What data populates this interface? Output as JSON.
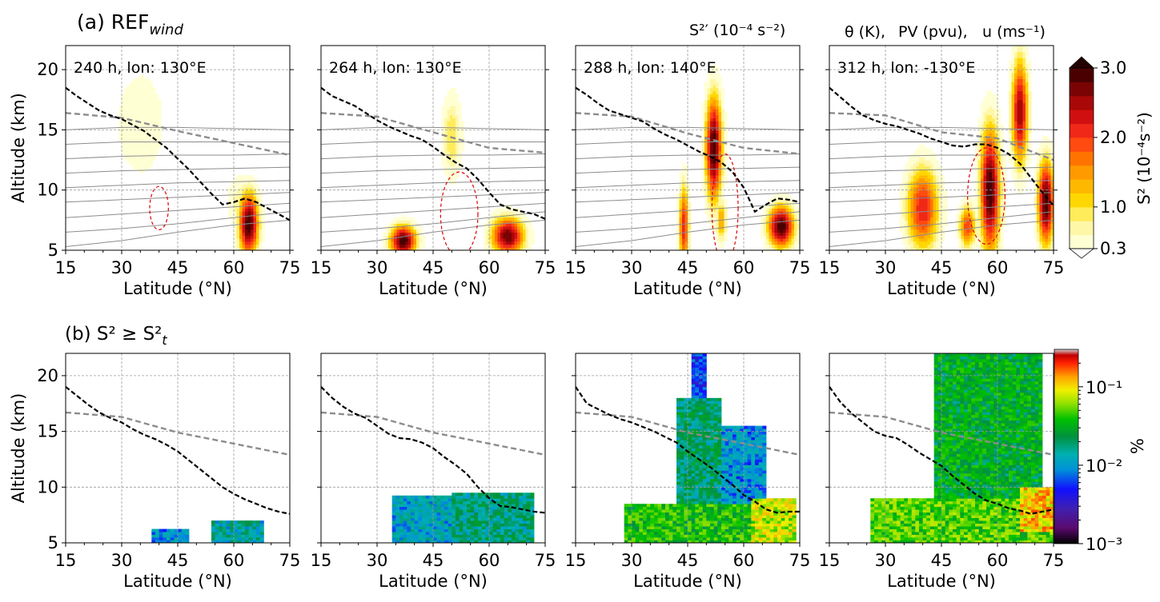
{
  "figure": {
    "row_a_title": "(a) REF",
    "row_a_title_sub": "wind",
    "row_b_title": "(b) S² ≥ S²",
    "row_b_title_sub": "t",
    "legend": [
      {
        "text": "S²′ (10⁻⁴ s⁻²)",
        "color": "#1b7f86"
      },
      {
        "text": "θ (K),",
        "color": "#8c8c8c"
      },
      {
        "text": "PV (pvu),",
        "color": "#000000"
      },
      {
        "text": "u (ms⁻¹)",
        "color": "#e00000"
      }
    ]
  },
  "chart_data": [
    {
      "type": "heatmap",
      "row": "a",
      "panels": [
        {
          "label": "240 h, lon: 130°E"
        },
        {
          "label": "264 h, lon: 130°E"
        },
        {
          "label": "288 h, lon: 140°E"
        },
        {
          "label": "312 h, lon: -130°E"
        }
      ],
      "xlabel": "Latitude (°N)",
      "ylabel": "Altitude (km)",
      "xlim": [
        15,
        75
      ],
      "ylim": [
        5,
        22
      ],
      "xticks": [
        15,
        30,
        45,
        60,
        75
      ],
      "yticks": [
        5,
        10,
        15,
        20
      ],
      "grid": true,
      "colorbar": {
        "label": "S² (10⁻⁴s⁻²)",
        "ticks": [
          "0.3",
          "1.0",
          "2.0",
          "3.0"
        ],
        "extend": "both",
        "levels": [
          0.3,
          0.6,
          0.8,
          1.0,
          1.2,
          1.4,
          1.6,
          1.8,
          2.0,
          2.2,
          2.4,
          2.6,
          2.8,
          3.0
        ],
        "colors": [
          "#ffffd4",
          "#fff7a8",
          "#ffec5a",
          "#ffd700",
          "#ffb800",
          "#ff9a00",
          "#ff7400",
          "#ff4a10",
          "#f02818",
          "#d01010",
          "#a80808",
          "#7a0303",
          "#4a0000",
          "#250000"
        ]
      },
      "pv_tropopause": {
        "lat": [
          15,
          18,
          21,
          24,
          27,
          30,
          33,
          36,
          39,
          42,
          45,
          48,
          51,
          54,
          57,
          60,
          63,
          66,
          69,
          72,
          75
        ],
        "panels": [
          [
            18.5,
            17.8,
            17.2,
            16.6,
            16.2,
            15.9,
            15.4,
            14.9,
            14.2,
            13.5,
            12.6,
            11.7,
            10.7,
            9.7,
            8.8,
            9.0,
            9.3,
            9.0,
            8.5,
            8.0,
            7.5
          ],
          [
            18.5,
            17.8,
            17.4,
            17.0,
            16.4,
            15.8,
            15.3,
            14.9,
            14.5,
            14.2,
            13.6,
            12.9,
            12.3,
            11.8,
            10.9,
            9.8,
            8.8,
            8.4,
            8.2,
            8.0,
            7.6
          ],
          [
            18.5,
            17.9,
            17.2,
            16.6,
            16.3,
            16.0,
            15.7,
            15.1,
            14.6,
            14.2,
            13.7,
            13.2,
            12.8,
            12.3,
            11.5,
            10.2,
            8.2,
            8.8,
            9.3,
            9.2,
            9.0
          ],
          [
            18.5,
            17.7,
            16.9,
            16.2,
            15.8,
            15.5,
            15.3,
            15.0,
            14.7,
            14.3,
            14.0,
            13.7,
            13.6,
            13.8,
            13.8,
            13.5,
            13.0,
            12.2,
            11.0,
            9.8,
            8.7
          ]
        ]
      },
      "theta_lapse_rate_tropopause": {
        "lat": [
          15,
          30,
          45,
          60,
          75
        ],
        "panels": [
          [
            16.4,
            16.0,
            14.9,
            13.9,
            12.9
          ],
          [
            16.4,
            16.1,
            14.8,
            13.5,
            13.1
          ],
          [
            16.4,
            16.1,
            14.7,
            13.5,
            13.0
          ],
          [
            16.4,
            16.2,
            14.8,
            14.3,
            12.5
          ]
        ]
      },
      "theta_isentropes": {
        "lat": [
          15,
          30,
          45,
          60,
          75
        ],
        "heights": [
          [
            5.3,
            5.8,
            6.5,
            7.1,
            7.5
          ],
          [
            6.5,
            6.8,
            7.2,
            7.7,
            8.2
          ],
          [
            7.7,
            8.0,
            8.3,
            8.6,
            8.9
          ],
          [
            9.0,
            9.2,
            9.4,
            9.6,
            9.8
          ],
          [
            10.2,
            10.4,
            10.6,
            10.7,
            10.8
          ],
          [
            11.4,
            11.6,
            11.7,
            11.8,
            11.9
          ],
          [
            12.6,
            12.8,
            12.9,
            12.9,
            13.0
          ],
          [
            13.8,
            14.0,
            14.0,
            14.0,
            14.0
          ],
          [
            15.0,
            15.2,
            15.2,
            15.1,
            15.0
          ]
        ]
      },
      "u_jet_contour": {
        "panels": [
          {
            "center": [
              40,
              8.5
            ],
            "half_width": [
              2.5,
              1.8
            ]
          },
          {
            "center": [
              52,
              8.0
            ],
            "half_width": [
              5.0,
              3.5
            ]
          },
          {
            "center": [
              55,
              8.5
            ],
            "half_width": [
              3.5,
              4.5
            ]
          },
          {
            "center": [
              57,
              9.5
            ],
            "half_width": [
              5.0,
              4.0
            ]
          }
        ]
      },
      "s2_features": {
        "panels": [
          [
            {
              "lat": 64,
              "alt": 7.2,
              "lat_w": 3.0,
              "alt_w": 3.0,
              "peak": 3.0
            },
            {
              "lat": 35,
              "alt": 15.5,
              "lat_w": 9.0,
              "alt_w": 6.0,
              "peak": 0.5
            },
            {
              "lat": 62,
              "alt": 9.0,
              "lat_w": 4.0,
              "alt_w": 2.5,
              "peak": 0.8
            }
          ],
          [
            {
              "lat": 37,
              "alt": 5.8,
              "lat_w": 4.0,
              "alt_w": 1.5,
              "peak": 3.0
            },
            {
              "lat": 65,
              "alt": 6.2,
              "lat_w": 5.0,
              "alt_w": 1.8,
              "peak": 2.8
            },
            {
              "lat": 50,
              "alt": 14.5,
              "lat_w": 3.0,
              "alt_w": 4.0,
              "peak": 1.0
            }
          ],
          [
            {
              "lat": 52,
              "alt": 13.5,
              "lat_w": 2.5,
              "alt_w": 5.0,
              "peak": 3.0
            },
            {
              "lat": 44,
              "alt": 7.0,
              "lat_w": 1.5,
              "alt_w": 4.0,
              "peak": 2.2
            },
            {
              "lat": 70,
              "alt": 7.0,
              "lat_w": 4.0,
              "alt_w": 2.0,
              "peak": 3.0
            },
            {
              "lat": 54,
              "alt": 7.5,
              "lat_w": 1.5,
              "alt_w": 2.0,
              "peak": 1.5
            }
          ],
          [
            {
              "lat": 40,
              "alt": 8.5,
              "lat_w": 5.0,
              "alt_w": 4.0,
              "peak": 2.2
            },
            {
              "lat": 58,
              "alt": 10.0,
              "lat_w": 3.0,
              "alt_w": 6.0,
              "peak": 3.0
            },
            {
              "lat": 66,
              "alt": 16.5,
              "lat_w": 2.5,
              "alt_w": 5.0,
              "peak": 2.6
            },
            {
              "lat": 73,
              "alt": 9.0,
              "lat_w": 2.5,
              "alt_w": 4.0,
              "peak": 3.0
            },
            {
              "lat": 52,
              "alt": 7.0,
              "lat_w": 2.5,
              "alt_w": 2.0,
              "peak": 2.0
            }
          ]
        ]
      }
    },
    {
      "type": "heatmap",
      "row": "b",
      "xlabel": "Latitude (°N)",
      "ylabel": "Altitude (km)",
      "xlim": [
        15,
        75
      ],
      "ylim": [
        5,
        22
      ],
      "xticks": [
        15,
        30,
        45,
        60,
        75
      ],
      "yticks": [
        5,
        10,
        15,
        20
      ],
      "grid": true,
      "colorbar": {
        "label": "%",
        "scale": "log",
        "range": [
          0.001,
          0.3
        ],
        "ticks": [
          "10⁻³",
          "10⁻²",
          "10⁻¹"
        ]
      },
      "pv_tropopause": {
        "lat": [
          15,
          18,
          21,
          24,
          27,
          30,
          33,
          36,
          39,
          42,
          45,
          48,
          51,
          54,
          57,
          60,
          63,
          66,
          69,
          72,
          75
        ],
        "panels": [
          [
            19.0,
            18.2,
            17.4,
            16.7,
            16.2,
            15.8,
            15.2,
            14.7,
            14.3,
            13.8,
            13.2,
            12.4,
            11.6,
            10.8,
            10.0,
            9.4,
            8.9,
            8.5,
            8.1,
            7.8,
            7.6
          ],
          [
            19.0,
            18.0,
            17.2,
            16.6,
            16.2,
            15.5,
            14.8,
            14.4,
            14.3,
            14.0,
            13.5,
            12.7,
            12.0,
            11.2,
            10.0,
            9.0,
            8.3,
            8.2,
            8.0,
            7.8,
            7.7
          ],
          [
            19.0,
            17.5,
            17.0,
            16.5,
            16.1,
            15.8,
            15.4,
            15.0,
            14.5,
            14.0,
            13.2,
            12.5,
            11.8,
            11.0,
            10.2,
            9.3,
            8.7,
            8.0,
            7.7,
            7.8,
            7.8
          ],
          [
            19.0,
            17.6,
            16.6,
            15.8,
            15.0,
            14.6,
            14.4,
            13.8,
            13.1,
            12.5,
            11.9,
            11.0,
            10.2,
            9.4,
            8.8,
            8.5,
            8.1,
            7.9,
            7.6,
            7.8,
            8.0
          ]
        ]
      },
      "theta_lapse_rate_tropopause": {
        "lat": [
          15,
          30,
          45,
          60,
          75
        ],
        "panels": [
          [
            16.7,
            16.3,
            14.9,
            13.9,
            12.9
          ],
          [
            16.7,
            16.3,
            14.9,
            13.9,
            12.9
          ],
          [
            16.7,
            16.3,
            14.9,
            13.9,
            12.9
          ],
          [
            16.7,
            16.3,
            14.9,
            13.9,
            12.9
          ]
        ]
      },
      "fraction_regions": {
        "panels": [
          [
            {
              "lat0": 38,
              "lat1": 48,
              "alt0": 5,
              "alt1": 6.2,
              "value": 0.01
            },
            {
              "lat0": 54,
              "lat1": 68,
              "alt0": 5,
              "alt1": 7.0,
              "value": 0.015
            }
          ],
          [
            {
              "lat0": 34,
              "lat1": 52,
              "alt0": 5,
              "alt1": 9.2,
              "value": 0.012
            },
            {
              "lat0": 50,
              "lat1": 72,
              "alt0": 5,
              "alt1": 9.5,
              "value": 0.018
            },
            {
              "lat0": 42,
              "lat1": 50,
              "alt0": 8.0,
              "alt1": 9.0,
              "value": 0.004
            }
          ],
          [
            {
              "lat0": 28,
              "lat1": 74,
              "alt0": 5,
              "alt1": 8.5,
              "value": 0.04
            },
            {
              "lat0": 42,
              "lat1": 54,
              "alt0": 8.5,
              "alt1": 18.0,
              "value": 0.02
            },
            {
              "lat0": 53,
              "lat1": 66,
              "alt0": 8.0,
              "alt1": 15.5,
              "value": 0.01
            },
            {
              "lat0": 62,
              "lat1": 74,
              "alt0": 5,
              "alt1": 9.0,
              "value": 0.08
            },
            {
              "lat0": 46,
              "lat1": 50,
              "alt0": 18.0,
              "alt1": 22.0,
              "value": 0.006
            }
          ],
          [
            {
              "lat0": 26,
              "lat1": 75,
              "alt0": 5,
              "alt1": 9.0,
              "value": 0.05
            },
            {
              "lat0": 43,
              "lat1": 72,
              "alt0": 9.0,
              "alt1": 22.0,
              "value": 0.03
            },
            {
              "lat0": 46,
              "lat1": 56,
              "alt0": 10.0,
              "alt1": 16.0,
              "value": 0.015
            },
            {
              "lat0": 66,
              "lat1": 75,
              "alt0": 6.0,
              "alt1": 10.0,
              "value": 0.12
            }
          ]
        ]
      }
    }
  ]
}
